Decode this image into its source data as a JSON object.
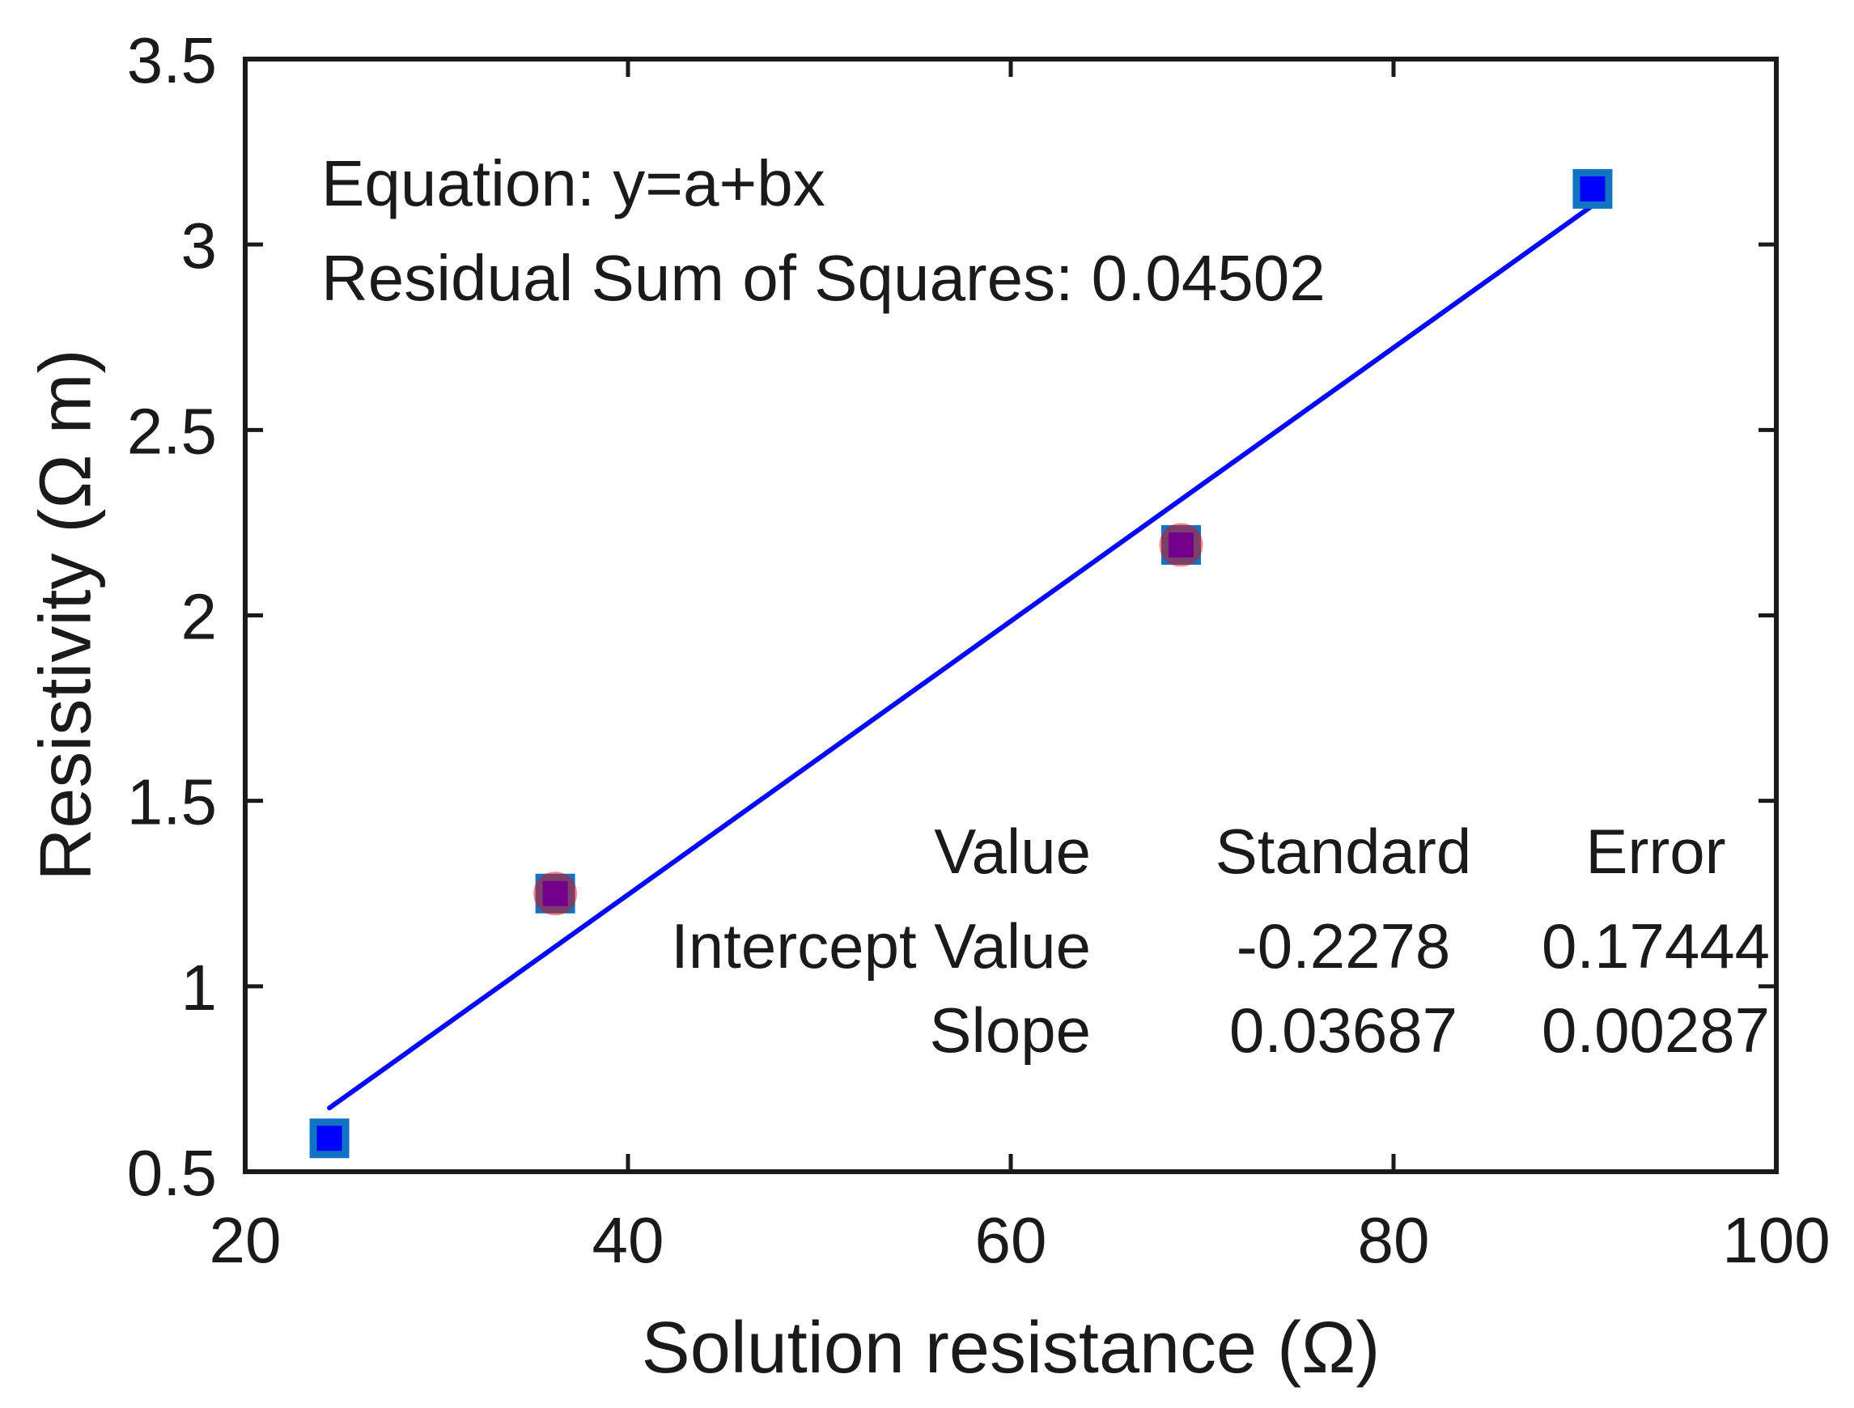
{
  "figure": {
    "background": "#ffffff",
    "text_color": "#1a1a1a",
    "axis_color": "#1a1a1a"
  },
  "chart_data": {
    "type": "scatter",
    "title": "",
    "xlabel": "Solution resistance (Ω)",
    "ylabel": "Resistivity (Ω m)",
    "xlim": [
      20,
      100
    ],
    "ylim": [
      0.5,
      3.5
    ],
    "x_tick_values": [
      20,
      40,
      60,
      80,
      100
    ],
    "y_tick_values": [
      0.5,
      1,
      1.5,
      2,
      2.5,
      3,
      3.5
    ],
    "grid": false,
    "legend": "none",
    "series": [
      {
        "name": "resistivity-squares",
        "marker": "square",
        "fill": "#0000ff",
        "edge": "#1273c2",
        "points": [
          [
            24.4,
            0.59
          ],
          [
            36.2,
            1.25
          ],
          [
            68.9,
            2.19
          ],
          [
            90.4,
            3.15
          ]
        ]
      },
      {
        "name": "overlay-circles",
        "marker": "circle",
        "fill": "rgba(255,0,0,0.45)",
        "edge": "none",
        "points": [
          [
            36.2,
            1.25
          ],
          [
            68.9,
            2.19
          ]
        ]
      }
    ],
    "fit_line": {
      "equation": "y=a+bx",
      "intercept": -0.2278,
      "slope": 0.03687,
      "residual_sum_of_squares": 0.04502,
      "x_range": [
        24.4,
        90.4
      ],
      "color": "#0008ff"
    },
    "annotations": {
      "equation": "Equation: y=a+bx",
      "rss": "Residual Sum of Squares: 0.04502"
    },
    "stats_table": {
      "header": [
        "Value",
        "Standard",
        "Error"
      ],
      "rows": [
        [
          "Intercept Value",
          "-0.2278",
          "0.17444"
        ],
        [
          "Slope",
          "0.03687",
          "0.00287"
        ]
      ]
    }
  }
}
